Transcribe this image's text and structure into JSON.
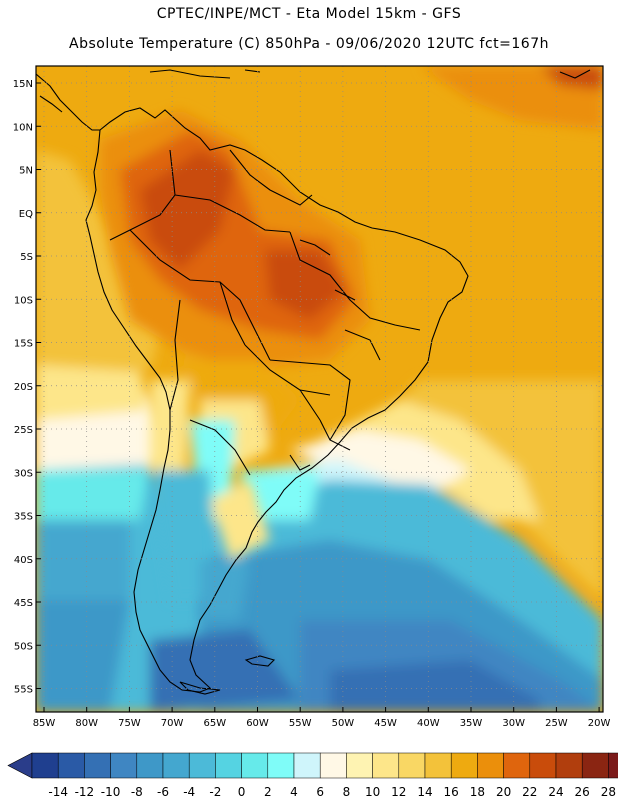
{
  "title": {
    "line1": "CPTEC/INPE/MCT -  Eta Model 15km - GFS",
    "line2": "Absolute Temperature (C) 850hPa - 09/06/2020 12UTC fct=167h"
  },
  "map": {
    "lat_labels": [
      "15N",
      "10N",
      "5N",
      "EQ",
      "5S",
      "10S",
      "15S",
      "20S",
      "25S",
      "30S",
      "35S",
      "40S",
      "45S",
      "50S",
      "55S"
    ],
    "lon_labels": [
      "85W",
      "80W",
      "75W",
      "70W",
      "65W",
      "60W",
      "55W",
      "50W",
      "45W",
      "40W",
      "35W",
      "30W",
      "25W",
      "20W"
    ],
    "lon_range": [
      -86,
      -19
    ],
    "lat_range": [
      -58,
      17
    ]
  },
  "colorbar": {
    "labels": [
      "-14",
      "-12",
      "-10",
      "-8",
      "-6",
      "-4",
      "-2",
      "0",
      "2",
      "4",
      "6",
      "8",
      "10",
      "12",
      "14",
      "16",
      "18",
      "20",
      "22",
      "24",
      "26",
      "28"
    ],
    "colors": [
      "#1f3f8f",
      "#2a5aa6",
      "#3470b4",
      "#3f86c2",
      "#3e98c8",
      "#44a7cf",
      "#4cbad8",
      "#55d3e2",
      "#66eaea",
      "#7ffcf8",
      "#cff5fb",
      "#fff8e6",
      "#fef3b2",
      "#fde68a",
      "#f9d764",
      "#f3c23a",
      "#eeaa10",
      "#eb8f0b",
      "#df650d",
      "#c94c0b",
      "#b13e0d",
      "#8a2512",
      "#7b1a1a"
    ],
    "under_color": "#2a3d8a",
    "over_color": "#7a1020"
  }
}
